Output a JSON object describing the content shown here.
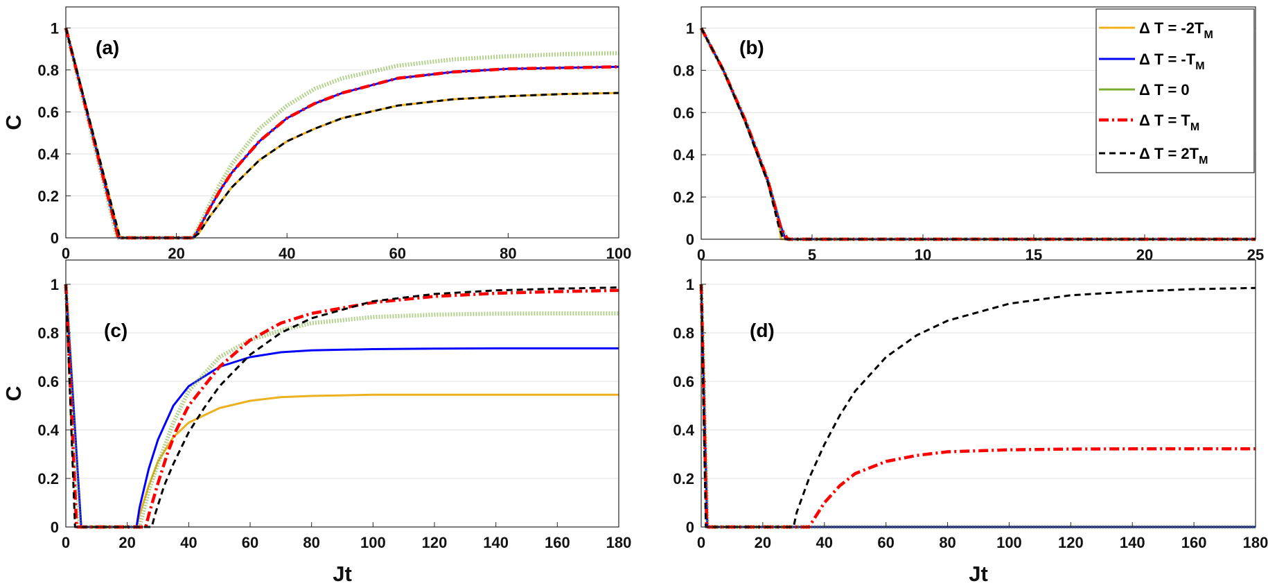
{
  "chart_data": [
    {
      "type": "line",
      "panel_label": "(a)",
      "xlabel": "",
      "ylabel": "C",
      "xlim": [
        0,
        100
      ],
      "ylim": [
        0,
        1.1
      ],
      "xticks": [
        "0",
        "20",
        "40",
        "60",
        "80",
        "100"
      ],
      "yticks": [
        "0",
        "0.2",
        "0.4",
        "0.6",
        "0.8",
        "1"
      ],
      "grid": "horizontal",
      "series": [
        {
          "name": "ΔT = -2T_M",
          "x": [
            0,
            9.8,
            23,
            24,
            26,
            28,
            30,
            35,
            40,
            45,
            50,
            60,
            70,
            80,
            90,
            100
          ],
          "y": [
            1,
            0,
            0,
            0.02,
            0.1,
            0.17,
            0.24,
            0.37,
            0.46,
            0.52,
            0.57,
            0.63,
            0.66,
            0.675,
            0.685,
            0.69
          ]
        },
        {
          "name": "ΔT = -T_M",
          "x": [
            0,
            9.5,
            23,
            24,
            26,
            28,
            30,
            35,
            40,
            45,
            50,
            60,
            70,
            80,
            90,
            100
          ],
          "y": [
            1,
            0,
            0,
            0.04,
            0.14,
            0.23,
            0.31,
            0.46,
            0.57,
            0.64,
            0.69,
            0.76,
            0.79,
            0.805,
            0.81,
            0.815
          ]
        },
        {
          "name": "ΔT = 0",
          "x": [
            0,
            9.3,
            23,
            24,
            26,
            28,
            30,
            35,
            40,
            45,
            50,
            60,
            70,
            80,
            90,
            100
          ],
          "y": [
            1,
            0,
            0,
            0.05,
            0.16,
            0.26,
            0.35,
            0.52,
            0.63,
            0.71,
            0.76,
            0.82,
            0.85,
            0.865,
            0.875,
            0.88
          ]
        },
        {
          "name": "ΔT = T_M",
          "x": [
            0,
            9.5,
            23,
            24,
            26,
            28,
            30,
            35,
            40,
            45,
            50,
            60,
            70,
            80,
            90,
            100
          ],
          "y": [
            1,
            0,
            0,
            0.04,
            0.14,
            0.23,
            0.31,
            0.46,
            0.57,
            0.64,
            0.69,
            0.76,
            0.79,
            0.805,
            0.81,
            0.815
          ]
        },
        {
          "name": "ΔT = 2T_M",
          "x": [
            0,
            9.8,
            23,
            24,
            26,
            28,
            30,
            35,
            40,
            45,
            50,
            60,
            70,
            80,
            90,
            100
          ],
          "y": [
            1,
            0,
            0,
            0.02,
            0.1,
            0.17,
            0.24,
            0.37,
            0.46,
            0.52,
            0.57,
            0.63,
            0.66,
            0.675,
            0.685,
            0.69
          ]
        }
      ]
    },
    {
      "type": "line",
      "panel_label": "(b)",
      "xlabel": "",
      "ylabel": "",
      "xlim": [
        0,
        25
      ],
      "ylim": [
        0,
        1.1
      ],
      "xticks": [
        "0",
        "5",
        "10",
        "15",
        "20",
        "25"
      ],
      "yticks": [
        "0",
        "0.2",
        "0.4",
        "0.6",
        "0.8",
        "1"
      ],
      "grid": "horizontal",
      "series": [
        {
          "name": "ΔT = -2T_M",
          "x": [
            0,
            1,
            2,
            3,
            3.5,
            3.6,
            25
          ],
          "y": [
            1,
            0.8,
            0.55,
            0.27,
            0.08,
            0,
            0
          ]
        },
        {
          "name": "ΔT = -T_M",
          "x": [
            0,
            1,
            2,
            3,
            3.6,
            3.8,
            25
          ],
          "y": [
            1,
            0.8,
            0.56,
            0.28,
            0.06,
            0,
            0
          ]
        },
        {
          "name": "ΔT = 0",
          "x": [
            0,
            1,
            2,
            3,
            3.6,
            3.9,
            25
          ],
          "y": [
            1,
            0.8,
            0.56,
            0.28,
            0.05,
            0,
            0
          ]
        },
        {
          "name": "ΔT = T_M",
          "x": [
            0,
            1,
            2,
            3,
            3.6,
            3.9,
            25
          ],
          "y": [
            1,
            0.8,
            0.56,
            0.28,
            0.05,
            0,
            0
          ]
        },
        {
          "name": "ΔT = 2T_M",
          "x": [
            0,
            1,
            2,
            3,
            3.5,
            3.7,
            25
          ],
          "y": [
            1,
            0.8,
            0.55,
            0.27,
            0.06,
            0,
            0
          ]
        }
      ]
    },
    {
      "type": "line",
      "panel_label": "(c)",
      "xlabel": "Jt",
      "ylabel": "C",
      "xlim": [
        0,
        180
      ],
      "ylim": [
        0,
        1.1
      ],
      "xticks": [
        "0",
        "20",
        "40",
        "60",
        "80",
        "100",
        "120",
        "140",
        "160",
        "180"
      ],
      "yticks": [
        "0",
        "0.2",
        "0.4",
        "0.6",
        "0.8",
        "1"
      ],
      "grid": "horizontal",
      "series": [
        {
          "name": "ΔT = -2T_M",
          "x": [
            0,
            5,
            23,
            24,
            27,
            30,
            35,
            40,
            50,
            60,
            70,
            80,
            100,
            120,
            140,
            160,
            180
          ],
          "y": [
            1,
            0,
            0,
            0.05,
            0.17,
            0.27,
            0.37,
            0.43,
            0.49,
            0.52,
            0.535,
            0.54,
            0.545,
            0.545,
            0.545,
            0.545,
            0.545
          ]
        },
        {
          "name": "ΔT = -T_M",
          "x": [
            0,
            5,
            23,
            24,
            27,
            30,
            35,
            40,
            50,
            60,
            70,
            80,
            100,
            120,
            140,
            160,
            180
          ],
          "y": [
            1,
            0,
            0,
            0.08,
            0.24,
            0.36,
            0.5,
            0.58,
            0.66,
            0.7,
            0.72,
            0.728,
            0.733,
            0.735,
            0.736,
            0.736,
            0.736
          ]
        },
        {
          "name": "ΔT = 0",
          "x": [
            0,
            4.5,
            24,
            25,
            27,
            30,
            35,
            40,
            50,
            60,
            70,
            80,
            100,
            120,
            140,
            160,
            180
          ],
          "y": [
            1,
            0,
            0,
            0.05,
            0.15,
            0.26,
            0.43,
            0.56,
            0.7,
            0.77,
            0.81,
            0.84,
            0.865,
            0.875,
            0.879,
            0.88,
            0.88
          ]
        },
        {
          "name": "ΔT = T_M",
          "x": [
            0,
            3.5,
            26,
            27,
            30,
            33,
            36,
            40,
            50,
            60,
            70,
            80,
            100,
            120,
            140,
            160,
            180
          ],
          "y": [
            1,
            0,
            0,
            0.05,
            0.18,
            0.3,
            0.4,
            0.5,
            0.66,
            0.77,
            0.84,
            0.88,
            0.925,
            0.95,
            0.963,
            0.97,
            0.975
          ]
        },
        {
          "name": "ΔT = 2T_M",
          "x": [
            0,
            3,
            28,
            29,
            32,
            35,
            40,
            45,
            50,
            60,
            70,
            80,
            100,
            120,
            140,
            160,
            180
          ],
          "y": [
            1,
            0,
            0,
            0.05,
            0.17,
            0.26,
            0.39,
            0.49,
            0.58,
            0.71,
            0.8,
            0.86,
            0.93,
            0.96,
            0.975,
            0.982,
            0.987
          ]
        }
      ]
    },
    {
      "type": "line",
      "panel_label": "(d)",
      "xlabel": "Jt",
      "ylabel": "",
      "xlim": [
        0,
        180
      ],
      "ylim": [
        0,
        1.1
      ],
      "xticks": [
        "0",
        "20",
        "40",
        "60",
        "80",
        "100",
        "120",
        "140",
        "160",
        "180"
      ],
      "yticks": [
        "0",
        "0.2",
        "0.4",
        "0.6",
        "0.8",
        "1"
      ],
      "grid": "horizontal",
      "series": [
        {
          "name": "ΔT = -2T_M",
          "x": [
            0,
            2,
            180
          ],
          "y": [
            1,
            0,
            0
          ]
        },
        {
          "name": "ΔT = -T_M",
          "x": [
            0,
            2,
            180
          ],
          "y": [
            1,
            0,
            0
          ]
        },
        {
          "name": "ΔT = 0",
          "x": [
            0,
            2,
            180
          ],
          "y": [
            1,
            0,
            0
          ]
        },
        {
          "name": "ΔT = T_M",
          "x": [
            0,
            1.8,
            35,
            36,
            40,
            45,
            50,
            60,
            70,
            80,
            100,
            120,
            140,
            160,
            180
          ],
          "y": [
            1,
            0,
            0,
            0.02,
            0.1,
            0.17,
            0.22,
            0.27,
            0.295,
            0.31,
            0.318,
            0.321,
            0.322,
            0.322,
            0.322
          ]
        },
        {
          "name": "ΔT = 2T_M",
          "x": [
            0,
            1.5,
            30,
            31,
            35,
            40,
            45,
            50,
            60,
            70,
            80,
            100,
            120,
            140,
            160,
            180
          ],
          "y": [
            1,
            0,
            0,
            0.06,
            0.2,
            0.34,
            0.46,
            0.56,
            0.7,
            0.79,
            0.85,
            0.92,
            0.955,
            0.97,
            0.98,
            0.985
          ]
        }
      ]
    }
  ],
  "legend": {
    "entries": [
      {
        "prefix": "Δ T = -2T",
        "sub": "M"
      },
      {
        "prefix": "Δ T = -T",
        "sub": "M"
      },
      {
        "prefix": "Δ T = 0",
        "sub": ""
      },
      {
        "prefix": "Δ T = T",
        "sub": "M"
      },
      {
        "prefix": "Δ T = 2T",
        "sub": "M"
      }
    ],
    "placement": "top-right of panel (b)"
  },
  "series_styles": [
    {
      "color": "#EDB120",
      "style": "solid"
    },
    {
      "color": "#0000FF",
      "style": "solid"
    },
    {
      "color": "#77AC30",
      "style": "crosses"
    },
    {
      "color": "#FF0000",
      "style": "dashdot"
    },
    {
      "color": "#000000",
      "style": "dashed"
    }
  ]
}
